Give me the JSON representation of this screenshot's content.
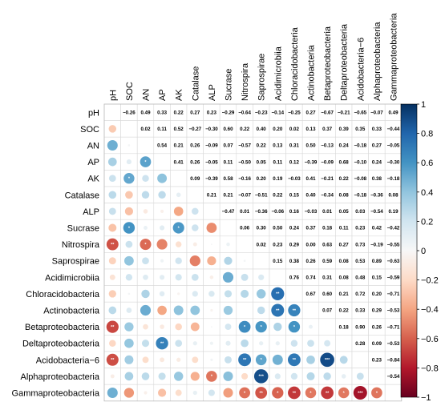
{
  "chart_data": {
    "type": "heatmap",
    "variables": [
      "pH",
      "SOC",
      "AN",
      "AP",
      "AK",
      "Catalase",
      "ALP",
      "Sucrase",
      "Nitrospira",
      "Saprospirae",
      "Acidimicrobiia",
      "Chloracidobacteria",
      "Actinobacteria",
      "Betaproteobacteria",
      "Deltaproteobacteria",
      "Acidobacteria−6",
      "Alphaproteobacteria",
      "Gammaproteobacteria"
    ],
    "upper_triangle_labels": [
      [
        "",
        "−0.26",
        "0.49",
        "0.33",
        "0.22",
        "0.27",
        "0.23",
        "−0.29",
        "−0.64",
        "−0.23",
        "−0.14",
        "−0.25",
        "0.27",
        "−0.67",
        "−0.21",
        "−0.65",
        "−0.07",
        "0.49"
      ],
      [
        "",
        "",
        "0.02",
        "0.11",
        "0.52",
        "−0.27",
        "−0.30",
        "0.60",
        "0.22",
        "0.40",
        "0.20",
        "0.02",
        "0.13",
        "0.37",
        "0.39",
        "0.35",
        "0.33",
        "−0.44"
      ],
      [
        "",
        "",
        "",
        "0.54",
        "0.21",
        "0.26",
        "−0.09",
        "0.07",
        "−0.57",
        "0.22",
        "0.13",
        "0.31",
        "0.50",
        "−0.13",
        "0.24",
        "−0.18",
        "0.27",
        "−0.05"
      ],
      [
        "",
        "",
        "",
        "",
        "0.41",
        "0.26",
        "−0.05",
        "0.11",
        "−0.50",
        "0.05",
        "0.11",
        "0.12",
        "−0.39",
        "−0.09",
        "0.68",
        "−0.10",
        "0.24",
        "−0.30"
      ],
      [
        "",
        "",
        "",
        "",
        "",
        "0.09",
        "−0.39",
        "0.58",
        "−0.16",
        "0.20",
        "0.19",
        "−0.03",
        "0.41",
        "−0.21",
        "0.22",
        "−0.08",
        "0.38",
        "−0.18"
      ],
      [
        "",
        "",
        "",
        "",
        "",
        "",
        "0.21",
        "0.21",
        "−0.07",
        "−0.51",
        "0.22",
        "0.15",
        "0.40",
        "−0.34",
        "0.08",
        "−0.18",
        "−0.36",
        "0.08"
      ],
      [
        "",
        "",
        "",
        "",
        "",
        "",
        "",
        "−0.47",
        "0.01",
        "−0.36",
        "−0.06",
        "0.16",
        "−0.03",
        "0.01",
        "0.05",
        "0.03",
        "−0.54",
        "0.19"
      ],
      [
        "",
        "",
        "",
        "",
        "",
        "",
        "",
        "",
        "0.06",
        "0.30",
        "0.50",
        "0.24",
        "0.37",
        "0.18",
        "0.11",
        "0.23",
        "0.42",
        "−0.42"
      ],
      [
        "",
        "",
        "",
        "",
        "",
        "",
        "",
        "",
        "",
        "0.02",
        "0.23",
        "0.29",
        "0.00",
        "0.63",
        "0.27",
        "0.73",
        "−0.19",
        "−0.55"
      ],
      [
        "",
        "",
        "",
        "",
        "",
        "",
        "",
        "",
        "",
        "",
        "0.15",
        "0.38",
        "0.26",
        "0.59",
        "0.08",
        "0.53",
        "0.89",
        "−0.63"
      ],
      [
        "",
        "",
        "",
        "",
        "",
        "",
        "",
        "",
        "",
        "",
        "",
        "0.76",
        "0.74",
        "0.31",
        "0.08",
        "0.48",
        "0.15",
        "−0.59"
      ],
      [
        "",
        "",
        "",
        "",
        "",
        "",
        "",
        "",
        "",
        "",
        "",
        "",
        "0.67",
        "0.60",
        "0.21",
        "0.72",
        "0.20",
        "−0.71"
      ],
      [
        "",
        "",
        "",
        "",
        "",
        "",
        "",
        "",
        "",
        "",
        "",
        "",
        "",
        "0.07",
        "0.22",
        "0.33",
        "0.29",
        "−0.53"
      ],
      [
        "",
        "",
        "",
        "",
        "",
        "",
        "",
        "",
        "",
        "",
        "",
        "",
        "",
        "",
        "0.18",
        "0.90",
        "0.26",
        "−0.71"
      ],
      [
        "",
        "",
        "",
        "",
        "",
        "",
        "",
        "",
        "",
        "",
        "",
        "",
        "",
        "",
        "",
        "0.28",
        "0.09",
        "−0.53"
      ],
      [
        "",
        "",
        "",
        "",
        "",
        "",
        "",
        "",
        "",
        "",
        "",
        "",
        "",
        "",
        "",
        "",
        "0.23",
        "−0.84"
      ],
      [
        "",
        "",
        "",
        "",
        "",
        "",
        "",
        "",
        "",
        "",
        "",
        "",
        "",
        "",
        "",
        "",
        "",
        "−0.54"
      ],
      [
        "",
        "",
        "",
        "",
        "",
        "",
        "",
        "",
        "",
        "",
        "",
        "",
        "",
        "",
        "",
        "",
        "",
        ""
      ]
    ],
    "lower_triangle": "circles sized and colored by the mirrored correlation value",
    "significance_marks": [
      {
        "row": "AP",
        "col": "AN",
        "mark": "*"
      },
      {
        "row": "AK",
        "col": "SOC",
        "mark": "*"
      },
      {
        "row": "Sucrase",
        "col": "SOC",
        "mark": "*"
      },
      {
        "row": "Sucrase",
        "col": "AK",
        "mark": "*"
      },
      {
        "row": "Nitrospira",
        "col": "pH",
        "mark": "**"
      },
      {
        "row": "Nitrospira",
        "col": "AN",
        "mark": "*"
      },
      {
        "row": "Chloracidobacteria",
        "col": "Acidimicrobiia",
        "mark": "**"
      },
      {
        "row": "Actinobacteria",
        "col": "Acidimicrobiia",
        "mark": "**"
      },
      {
        "row": "Actinobacteria",
        "col": "Chloracidobacteria",
        "mark": "**"
      },
      {
        "row": "Betaproteobacteria",
        "col": "pH",
        "mark": "**"
      },
      {
        "row": "Betaproteobacteria",
        "col": "Nitrospira",
        "mark": "*"
      },
      {
        "row": "Betaproteobacteria",
        "col": "Saprospirae",
        "mark": "*"
      },
      {
        "row": "Betaproteobacteria",
        "col": "Chloracidobacteria",
        "mark": "*"
      },
      {
        "row": "Deltaproteobacteria",
        "col": "AP",
        "mark": "**"
      },
      {
        "row": "Acidobacteria−6",
        "col": "pH",
        "mark": "**"
      },
      {
        "row": "Acidobacteria−6",
        "col": "Nitrospira",
        "mark": "**"
      },
      {
        "row": "Acidobacteria−6",
        "col": "Saprospirae",
        "mark": "*"
      },
      {
        "row": "Acidobacteria−6",
        "col": "Chloracidobacteria",
        "mark": "**"
      },
      {
        "row": "Acidobacteria−6",
        "col": "Betaproteobacteria",
        "mark": "***"
      },
      {
        "row": "Alphaproteobacteria",
        "col": "ALP",
        "mark": "*"
      },
      {
        "row": "Alphaproteobacteria",
        "col": "Saprospirae",
        "mark": "***"
      },
      {
        "row": "Gammaproteobacteria",
        "col": "Nitrospira",
        "mark": "*"
      },
      {
        "row": "Gammaproteobacteria",
        "col": "Saprospirae",
        "mark": "**"
      },
      {
        "row": "Gammaproteobacteria",
        "col": "Acidimicrobiia",
        "mark": "*"
      },
      {
        "row": "Gammaproteobacteria",
        "col": "Chloracidobacteria",
        "mark": "**"
      },
      {
        "row": "Gammaproteobacteria",
        "col": "Actinobacteria",
        "mark": "*"
      },
      {
        "row": "Gammaproteobacteria",
        "col": "Betaproteobacteria",
        "mark": "**"
      },
      {
        "row": "Gammaproteobacteria",
        "col": "Deltaproteobacteria",
        "mark": "*"
      },
      {
        "row": "Gammaproteobacteria",
        "col": "Acidobacteria−6",
        "mark": "***"
      },
      {
        "row": "Gammaproteobacteria",
        "col": "Alphaproteobacteria",
        "mark": "*"
      }
    ],
    "colorbar": {
      "range": [
        -1,
        1
      ],
      "ticks": [
        "1",
        "0.8",
        "0.6",
        "0.4",
        "0.2",
        "0",
        "−0.2",
        "−0.4",
        "−0.6",
        "−0.8",
        "−1"
      ],
      "colors": {
        "neg_strong": "#67001f",
        "neg_mid": "#d6604d",
        "neutral": "#f7f7f7",
        "pos_mid": "#4393c3",
        "pos_strong": "#053061"
      }
    },
    "grid": true,
    "legend_position": "right"
  }
}
